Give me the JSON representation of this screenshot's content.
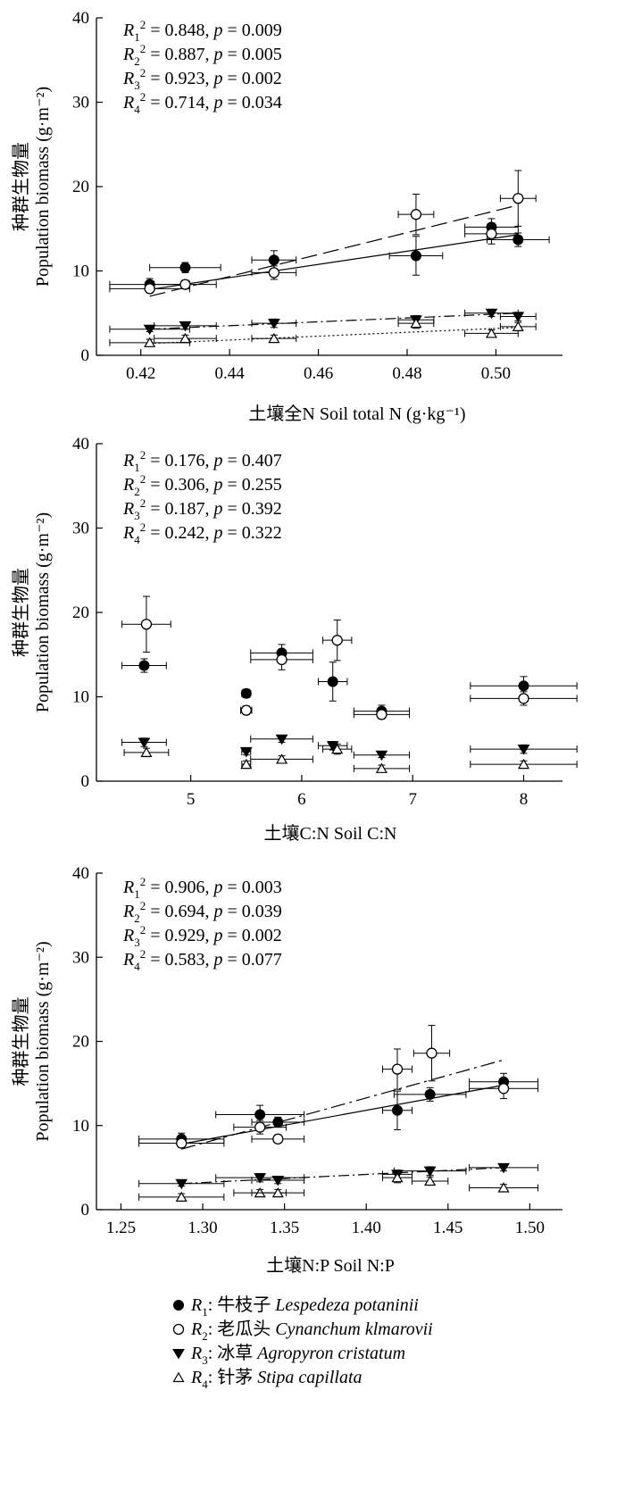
{
  "species": [
    {
      "key": "R1",
      "marker": "filled-circle",
      "cn": "牛枝子",
      "latin": "Lespedeza potaninii"
    },
    {
      "key": "R2",
      "marker": "open-circle",
      "cn": "老瓜头",
      "latin": "Cynanchum klmarovii"
    },
    {
      "key": "R3",
      "marker": "filled-triangle-down",
      "cn": "冰草",
      "latin": "Agropyron cristatum"
    },
    {
      "key": "R4",
      "marker": "open-triangle-up",
      "cn": "针茅",
      "latin": "Stipa capillata"
    }
  ],
  "chart_data": [
    {
      "type": "scatter",
      "ylabel_cn": "种群生物量",
      "ylabel_en": "Population biomass (g·m⁻²)",
      "xlabel_cn": "土壤全N",
      "xlabel_en": "Soil total N",
      "xlabel_unit": "(g·kg⁻¹)",
      "xlim": [
        0.41,
        0.515
      ],
      "ylim": [
        0,
        40
      ],
      "xticks": [
        0.42,
        0.44,
        0.46,
        0.48,
        0.5
      ],
      "xtick_labels": [
        "0.42",
        "0.44",
        "0.46",
        "0.48",
        "0.50"
      ],
      "yticks": [
        0,
        10,
        20,
        30,
        40
      ],
      "stats": [
        {
          "r2": "0.848",
          "p": "0.009"
        },
        {
          "r2": "0.887",
          "p": "0.005"
        },
        {
          "r2": "0.923",
          "p": "0.002"
        },
        {
          "r2": "0.714",
          "p": "0.034"
        }
      ],
      "series": [
        {
          "name": "R1",
          "points": [
            {
              "x": 0.422,
              "y": 8.4,
              "xerr": 0.009,
              "yerr": 0.7
            },
            {
              "x": 0.43,
              "y": 10.4,
              "xerr": 0.008,
              "yerr": 0.6
            },
            {
              "x": 0.45,
              "y": 11.3,
              "xerr": 0.005,
              "yerr": 1.1
            },
            {
              "x": 0.482,
              "y": 11.8,
              "xerr": 0.006,
              "yerr": 2.3
            },
            {
              "x": 0.499,
              "y": 15.2,
              "xerr": 0.006,
              "yerr": 1.0
            },
            {
              "x": 0.505,
              "y": 13.7,
              "xerr": 0.007,
              "yerr": 0.8
            }
          ],
          "trend": {
            "x0": 0.422,
            "y0": 7.8,
            "x1": 0.505,
            "y1": 14.3,
            "dash": "none"
          }
        },
        {
          "name": "R2",
          "points": [
            {
              "x": 0.422,
              "y": 7.9,
              "xerr": 0.009,
              "yerr": 0.5
            },
            {
              "x": 0.43,
              "y": 8.4,
              "xerr": 0.007,
              "yerr": 0.5
            },
            {
              "x": 0.45,
              "y": 9.8,
              "xerr": 0.005,
              "yerr": 0.8
            },
            {
              "x": 0.482,
              "y": 16.7,
              "xerr": 0.004,
              "yerr": 2.4
            },
            {
              "x": 0.499,
              "y": 14.4,
              "xerr": 0.006,
              "yerr": 1.2
            },
            {
              "x": 0.505,
              "y": 18.6,
              "xerr": 0.004,
              "yerr": 3.3
            }
          ],
          "trend": {
            "x0": 0.422,
            "y0": 7.0,
            "x1": 0.505,
            "y1": 17.8,
            "dash": "18 7"
          }
        },
        {
          "name": "R3",
          "points": [
            {
              "x": 0.422,
              "y": 3.1,
              "xerr": 0.009,
              "yerr": 0.3
            },
            {
              "x": 0.43,
              "y": 3.5,
              "xerr": 0.007,
              "yerr": 0.4
            },
            {
              "x": 0.45,
              "y": 3.8,
              "xerr": 0.005,
              "yerr": 0.5
            },
            {
              "x": 0.482,
              "y": 4.2,
              "xerr": 0.004,
              "yerr": 0.5
            },
            {
              "x": 0.499,
              "y": 5.0,
              "xerr": 0.006,
              "yerr": 0.4
            },
            {
              "x": 0.505,
              "y": 4.6,
              "xerr": 0.004,
              "yerr": 0.5
            }
          ],
          "trend": {
            "x0": 0.422,
            "y0": 3.1,
            "x1": 0.505,
            "y1": 5.0,
            "dash": "12 4 2 4"
          }
        },
        {
          "name": "R4",
          "points": [
            {
              "x": 0.422,
              "y": 1.5,
              "xerr": 0.009,
              "yerr": 0.4
            },
            {
              "x": 0.43,
              "y": 2.0,
              "xerr": 0.007,
              "yerr": 0.4
            },
            {
              "x": 0.45,
              "y": 2.0,
              "xerr": 0.005,
              "yerr": 0.4
            },
            {
              "x": 0.482,
              "y": 3.8,
              "xerr": 0.004,
              "yerr": 0.6
            },
            {
              "x": 0.499,
              "y": 2.6,
              "xerr": 0.006,
              "yerr": 0.4
            },
            {
              "x": 0.505,
              "y": 3.4,
              "xerr": 0.004,
              "yerr": 0.5
            }
          ],
          "trend": {
            "x0": 0.422,
            "y0": 1.4,
            "x1": 0.505,
            "y1": 3.3,
            "dash": "2 3"
          }
        }
      ]
    },
    {
      "type": "scatter",
      "ylabel_cn": "种群生物量",
      "ylabel_en": "Population biomass (g·m⁻²)",
      "xlabel_cn": "土壤C:N",
      "xlabel_en": "Soil C:N",
      "xlabel_unit": "",
      "xlim": [
        4.15,
        8.35
      ],
      "ylim": [
        0,
        40
      ],
      "xticks": [
        5,
        6,
        7,
        8
      ],
      "xtick_labels": [
        "5",
        "6",
        "7",
        "8"
      ],
      "yticks": [
        0,
        10,
        20,
        30,
        40
      ],
      "stats": [
        {
          "r2": "0.176",
          "p": "0.407"
        },
        {
          "r2": "0.306",
          "p": "0.255"
        },
        {
          "r2": "0.187",
          "p": "0.392"
        },
        {
          "r2": "0.242",
          "p": "0.322"
        }
      ],
      "series": [
        {
          "name": "R1",
          "points": [
            {
              "x": 4.58,
              "y": 13.7,
              "xerr": 0.2,
              "yerr": 0.8
            },
            {
              "x": 5.5,
              "y": 10.4,
              "xerr": 0.04,
              "yerr": 0.5
            },
            {
              "x": 5.82,
              "y": 15.2,
              "xerr": 0.28,
              "yerr": 1.0
            },
            {
              "x": 6.28,
              "y": 11.8,
              "xerr": 0.13,
              "yerr": 2.3
            },
            {
              "x": 6.72,
              "y": 8.3,
              "xerr": 0.25,
              "yerr": 0.7
            },
            {
              "x": 8.0,
              "y": 11.3,
              "xerr": 0.48,
              "yerr": 1.1
            }
          ]
        },
        {
          "name": "R2",
          "points": [
            {
              "x": 4.6,
              "y": 18.6,
              "xerr": 0.22,
              "yerr": 3.3
            },
            {
              "x": 5.5,
              "y": 8.4,
              "xerr": 0.05,
              "yerr": 0.5
            },
            {
              "x": 5.82,
              "y": 14.4,
              "xerr": 0.28,
              "yerr": 1.2
            },
            {
              "x": 6.32,
              "y": 16.7,
              "xerr": 0.13,
              "yerr": 2.4
            },
            {
              "x": 6.72,
              "y": 7.9,
              "xerr": 0.25,
              "yerr": 0.5
            },
            {
              "x": 8.0,
              "y": 9.8,
              "xerr": 0.48,
              "yerr": 0.8
            }
          ]
        },
        {
          "name": "R3",
          "points": [
            {
              "x": 4.58,
              "y": 4.6,
              "xerr": 0.2,
              "yerr": 0.5
            },
            {
              "x": 5.5,
              "y": 3.5,
              "xerr": 0.04,
              "yerr": 0.4
            },
            {
              "x": 5.82,
              "y": 5.0,
              "xerr": 0.28,
              "yerr": 0.4
            },
            {
              "x": 6.28,
              "y": 4.2,
              "xerr": 0.13,
              "yerr": 0.5
            },
            {
              "x": 6.72,
              "y": 3.1,
              "xerr": 0.25,
              "yerr": 0.3
            },
            {
              "x": 8.0,
              "y": 3.8,
              "xerr": 0.48,
              "yerr": 0.5
            }
          ]
        },
        {
          "name": "R4",
          "points": [
            {
              "x": 4.6,
              "y": 3.4,
              "xerr": 0.2,
              "yerr": 0.5
            },
            {
              "x": 5.5,
              "y": 2.0,
              "xerr": 0.04,
              "yerr": 0.4
            },
            {
              "x": 5.82,
              "y": 2.6,
              "xerr": 0.28,
              "yerr": 0.4
            },
            {
              "x": 6.32,
              "y": 3.8,
              "xerr": 0.13,
              "yerr": 0.6
            },
            {
              "x": 6.72,
              "y": 1.5,
              "xerr": 0.25,
              "yerr": 0.4
            },
            {
              "x": 8.0,
              "y": 2.0,
              "xerr": 0.48,
              "yerr": 0.4
            }
          ]
        }
      ]
    },
    {
      "type": "scatter",
      "ylabel_cn": "种群生物量",
      "ylabel_en": "Population biomass (g·m⁻²)",
      "xlabel_cn": "土壤N:P",
      "xlabel_en": "Soil N:P",
      "xlabel_unit": "",
      "xlim": [
        1.235,
        1.52
      ],
      "ylim": [
        0,
        40
      ],
      "xticks": [
        1.25,
        1.3,
        1.35,
        1.4,
        1.45,
        1.5
      ],
      "xtick_labels": [
        "1.25",
        "1.30",
        "1.35",
        "1.40",
        "1.45",
        "1.50"
      ],
      "yticks": [
        0,
        10,
        20,
        30,
        40
      ],
      "stats": [
        {
          "r2": "0.906",
          "p": "0.003"
        },
        {
          "r2": "0.694",
          "p": "0.039"
        },
        {
          "r2": "0.929",
          "p": "0.002"
        },
        {
          "r2": "0.583",
          "p": "0.077"
        }
      ],
      "series": [
        {
          "name": "R1",
          "points": [
            {
              "x": 1.287,
              "y": 8.4,
              "xerr": 0.026,
              "yerr": 0.7
            },
            {
              "x": 1.335,
              "y": 11.3,
              "xerr": 0.027,
              "yerr": 1.1
            },
            {
              "x": 1.346,
              "y": 10.4,
              "xerr": 0.016,
              "yerr": 0.6
            },
            {
              "x": 1.419,
              "y": 11.8,
              "xerr": 0.009,
              "yerr": 2.3
            },
            {
              "x": 1.439,
              "y": 13.7,
              "xerr": 0.022,
              "yerr": 0.8
            },
            {
              "x": 1.484,
              "y": 15.2,
              "xerr": 0.021,
              "yerr": 1.0
            }
          ],
          "trend": {
            "x0": 1.287,
            "y0": 7.8,
            "x1": 1.484,
            "y1": 14.8,
            "dash": "none"
          }
        },
        {
          "name": "R2",
          "points": [
            {
              "x": 1.287,
              "y": 7.9,
              "xerr": 0.026,
              "yerr": 0.5
            },
            {
              "x": 1.335,
              "y": 9.8,
              "xerr": 0.016,
              "yerr": 0.8
            },
            {
              "x": 1.346,
              "y": 8.4,
              "xerr": 0.016,
              "yerr": 0.5
            },
            {
              "x": 1.419,
              "y": 16.7,
              "xerr": 0.009,
              "yerr": 2.4
            },
            {
              "x": 1.44,
              "y": 18.6,
              "xerr": 0.011,
              "yerr": 3.3
            },
            {
              "x": 1.484,
              "y": 14.4,
              "xerr": 0.021,
              "yerr": 1.2
            }
          ],
          "trend": {
            "x0": 1.287,
            "y0": 7.2,
            "x1": 1.484,
            "y1": 17.8,
            "dash": "16 5 3 5"
          }
        },
        {
          "name": "R3",
          "points": [
            {
              "x": 1.287,
              "y": 3.1,
              "xerr": 0.026,
              "yerr": 0.3
            },
            {
              "x": 1.335,
              "y": 3.8,
              "xerr": 0.027,
              "yerr": 0.5
            },
            {
              "x": 1.346,
              "y": 3.5,
              "xerr": 0.016,
              "yerr": 0.4
            },
            {
              "x": 1.419,
              "y": 4.2,
              "xerr": 0.009,
              "yerr": 0.5
            },
            {
              "x": 1.439,
              "y": 4.6,
              "xerr": 0.022,
              "yerr": 0.5
            },
            {
              "x": 1.484,
              "y": 5.0,
              "xerr": 0.021,
              "yerr": 0.4
            }
          ],
          "trend": {
            "x0": 1.287,
            "y0": 3.1,
            "x1": 1.484,
            "y1": 5.0,
            "dash": "12 4 2 4"
          }
        },
        {
          "name": "R4",
          "points": [
            {
              "x": 1.287,
              "y": 1.5,
              "xerr": 0.026,
              "yerr": 0.4
            },
            {
              "x": 1.335,
              "y": 2.0,
              "xerr": 0.016,
              "yerr": 0.4
            },
            {
              "x": 1.346,
              "y": 2.0,
              "xerr": 0.016,
              "yerr": 0.4
            },
            {
              "x": 1.419,
              "y": 3.8,
              "xerr": 0.009,
              "yerr": 0.6
            },
            {
              "x": 1.439,
              "y": 3.4,
              "xerr": 0.011,
              "yerr": 0.5
            },
            {
              "x": 1.484,
              "y": 2.6,
              "xerr": 0.021,
              "yerr": 0.4
            }
          ]
        }
      ]
    }
  ]
}
